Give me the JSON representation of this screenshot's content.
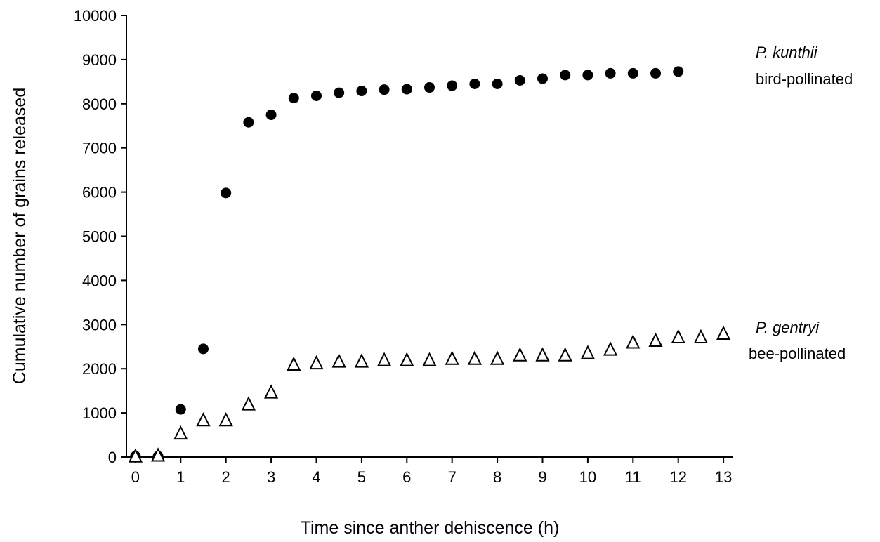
{
  "chart_data": {
    "type": "scatter",
    "title": "",
    "xlabel": "Time since anther dehiscence (h)",
    "ylabel": "Cumulative number of grains released",
    "xlim": [
      -0.2,
      13.2
    ],
    "ylim": [
      0,
      10000
    ],
    "xticks": [
      0,
      1,
      2,
      3,
      4,
      5,
      6,
      7,
      8,
      9,
      10,
      11,
      12,
      13
    ],
    "yticks": [
      0,
      1000,
      2000,
      3000,
      4000,
      5000,
      6000,
      7000,
      8000,
      9000,
      10000
    ],
    "grid": false,
    "legend": "none; series labeled directly at right",
    "series": [
      {
        "label_species": "P. kunthii",
        "label_pollination": "bird-pollinated",
        "marker": "filled-circle",
        "color": "#000000",
        "x": [
          0,
          0.5,
          1,
          1.5,
          2,
          2.5,
          3,
          3.5,
          4,
          4.5,
          5,
          5.5,
          6,
          6.5,
          7,
          7.5,
          8,
          8.5,
          9,
          9.5,
          10,
          10.5,
          11,
          11.5,
          12
        ],
        "y": [
          20,
          20,
          1080,
          2450,
          5980,
          7580,
          7750,
          8130,
          8180,
          8250,
          8290,
          8320,
          8330,
          8370,
          8410,
          8450,
          8450,
          8530,
          8570,
          8650,
          8650,
          8690,
          8690,
          8690,
          8730
        ]
      },
      {
        "label_species": "P. gentryi",
        "label_pollination": "bee-pollinated",
        "marker": "open-triangle",
        "color": "#000000",
        "x": [
          0,
          0.5,
          1,
          1.5,
          2,
          2.5,
          3,
          3.5,
          4,
          4.5,
          5,
          5.5,
          6,
          6.5,
          7,
          7.5,
          8,
          8.5,
          9,
          9.5,
          10,
          10.5,
          11,
          11.5,
          12,
          12.5,
          13
        ],
        "y": [
          0,
          20,
          520,
          820,
          820,
          1180,
          1450,
          2080,
          2110,
          2150,
          2150,
          2180,
          2180,
          2180,
          2210,
          2210,
          2210,
          2290,
          2290,
          2290,
          2340,
          2420,
          2580,
          2620,
          2700,
          2700,
          2780
        ]
      }
    ]
  }
}
